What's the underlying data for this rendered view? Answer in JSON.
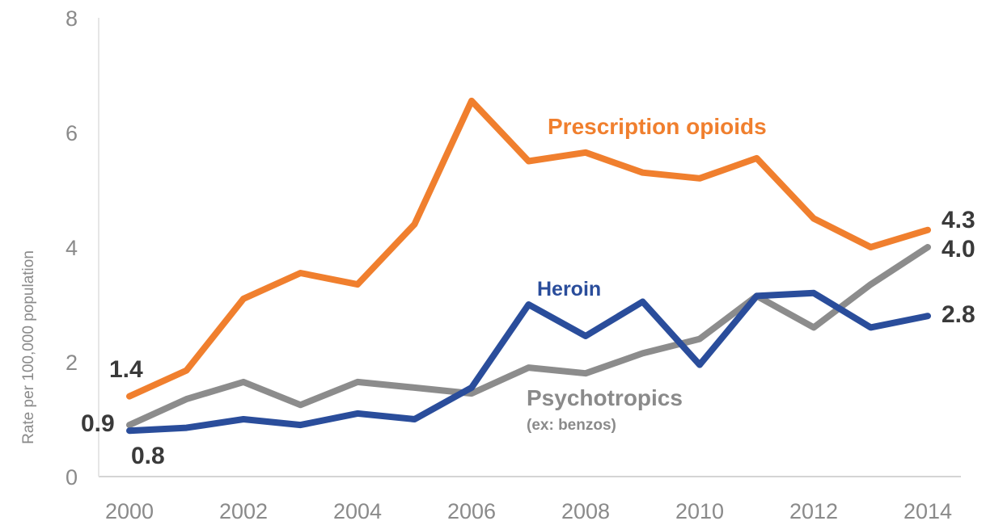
{
  "chart_data": {
    "type": "line",
    "ylabel": "Rate per 100,000 population",
    "ylim": [
      0,
      8
    ],
    "yticks": [
      "0",
      "2",
      "4",
      "6",
      "8"
    ],
    "xticks": [
      "2000",
      "2002",
      "2004",
      "2006",
      "2008",
      "2010",
      "2012",
      "2014"
    ],
    "x": [
      2000,
      2001,
      2002,
      2003,
      2004,
      2005,
      2006,
      2007,
      2008,
      2009,
      2010,
      2011,
      2012,
      2013,
      2014
    ],
    "grid": false,
    "series": [
      {
        "name": "Prescription opioids",
        "color": "#f07f2e",
        "values": [
          1.4,
          1.85,
          3.1,
          3.55,
          3.35,
          4.4,
          6.55,
          5.5,
          5.65,
          5.3,
          5.2,
          5.55,
          4.5,
          4.0,
          4.3
        ],
        "start_label": "1.4",
        "end_label": "4.3"
      },
      {
        "name": "Heroin",
        "color": "#2a4d9b",
        "values": [
          0.8,
          0.85,
          1.0,
          0.9,
          1.1,
          1.0,
          1.55,
          3.0,
          2.45,
          3.05,
          1.95,
          3.15,
          3.2,
          2.6,
          2.8
        ],
        "start_label": "0.8",
        "end_label": "2.8"
      },
      {
        "name": "Psychotropics",
        "sublabel": "(ex: benzos)",
        "color": "#8c8c8c",
        "values": [
          0.9,
          1.35,
          1.65,
          1.25,
          1.65,
          1.55,
          1.45,
          1.9,
          1.8,
          2.15,
          2.4,
          3.15,
          2.6,
          3.35,
          4.0
        ],
        "start_label": "0.9",
        "end_label": "4.0"
      }
    ]
  }
}
